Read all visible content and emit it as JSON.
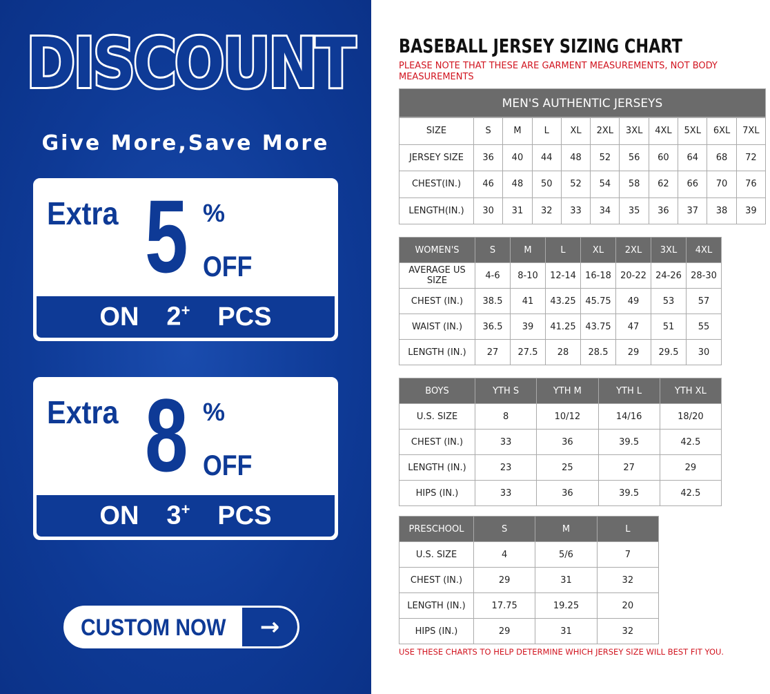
{
  "promo": {
    "headline": "DISCOUNT",
    "tagline": "Give More,Save More",
    "offers": [
      {
        "extra": "Extra",
        "number": "5",
        "percent": "%",
        "off": "OFF",
        "on": "ON",
        "qty": "2",
        "plus": "+",
        "pcs": "PCS"
      },
      {
        "extra": "Extra",
        "number": "8",
        "percent": "%",
        "off": "OFF",
        "on": "ON",
        "qty": "3",
        "plus": "+",
        "pcs": "PCS"
      }
    ],
    "cta": "CUSTOM NOW",
    "cta_icon": "arrow-right-icon",
    "brand_color": "#0e3a96"
  },
  "chart": {
    "title": "BASEBALL JERSEY SIZING CHART",
    "note": "PLEASE NOTE THAT THESE ARE GARMENT MEASUREMENTS, NOT BODY MEASUREMENTS",
    "footnote": "USE THESE CHARTS TO HELP DETERMINE WHICH JERSEY SIZE WILL BEST FIT YOU.",
    "note_color": "#d1141f",
    "header_color": "#6b6b6b"
  },
  "tables": {
    "men": {
      "caption": "MEN'S AUTHENTIC JERSEYS",
      "header": null,
      "rows": [
        [
          "SIZE",
          "S",
          "M",
          "L",
          "XL",
          "2XL",
          "3XL",
          "4XL",
          "5XL",
          "6XL",
          "7XL"
        ],
        [
          "JERSEY SIZE",
          "36",
          "40",
          "44",
          "48",
          "52",
          "56",
          "60",
          "64",
          "68",
          "72"
        ],
        [
          "CHEST(IN.)",
          "46",
          "48",
          "50",
          "52",
          "54",
          "58",
          "62",
          "66",
          "70",
          "76"
        ],
        [
          "LENGTH(IN.)",
          "30",
          "31",
          "32",
          "33",
          "34",
          "35",
          "36",
          "37",
          "38",
          "39"
        ]
      ]
    },
    "women": {
      "header": [
        "WOMEN'S",
        "S",
        "M",
        "L",
        "XL",
        "2XL",
        "3XL",
        "4XL"
      ],
      "rows": [
        [
          "AVERAGE US SIZE",
          "4-6",
          "8-10",
          "12-14",
          "16-18",
          "20-22",
          "24-26",
          "28-30"
        ],
        [
          "CHEST (IN.)",
          "38.5",
          "41",
          "43.25",
          "45.75",
          "49",
          "53",
          "57"
        ],
        [
          "WAIST (IN.)",
          "36.5",
          "39",
          "41.25",
          "43.75",
          "47",
          "51",
          "55"
        ],
        [
          "LENGTH (IN.)",
          "27",
          "27.5",
          "28",
          "28.5",
          "29",
          "29.5",
          "30"
        ]
      ]
    },
    "boys": {
      "header": [
        "BOYS",
        "YTH S",
        "YTH M",
        "YTH L",
        "YTH XL"
      ],
      "rows": [
        [
          "U.S. SIZE",
          "8",
          "10/12",
          "14/16",
          "18/20"
        ],
        [
          "CHEST (IN.)",
          "33",
          "36",
          "39.5",
          "42.5"
        ],
        [
          "LENGTH (IN.)",
          "23",
          "25",
          "27",
          "29"
        ],
        [
          "HIPS (IN.)",
          "33",
          "36",
          "39.5",
          "42.5"
        ]
      ]
    },
    "pre": {
      "header": [
        "PRESCHOOL",
        "S",
        "M",
        "L"
      ],
      "rows": [
        [
          "U.S. SIZE",
          "4",
          "5/6",
          "7"
        ],
        [
          "CHEST (IN.)",
          "29",
          "31",
          "32"
        ],
        [
          "LENGTH (IN.)",
          "17.75",
          "19.25",
          "20"
        ],
        [
          "HIPS (IN.)",
          "29",
          "31",
          "32"
        ]
      ]
    }
  }
}
